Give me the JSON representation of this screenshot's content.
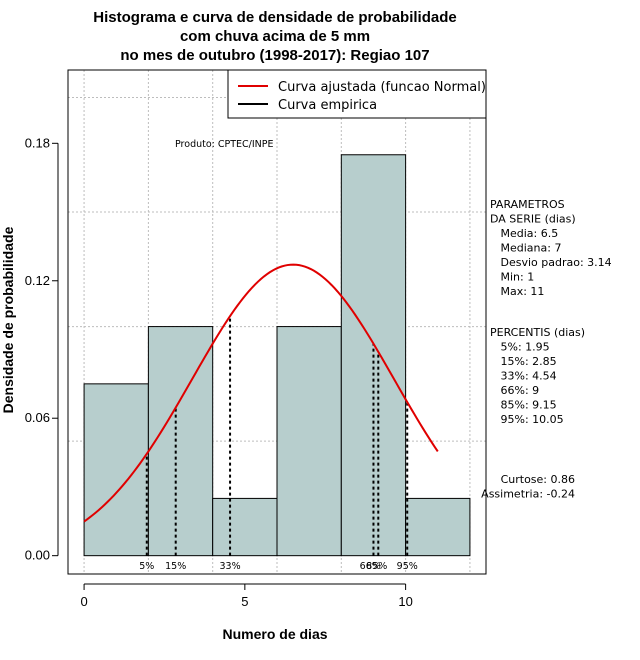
{
  "chart_data": {
    "type": "bar",
    "title_lines": [
      "Histograma e curva de densidade de probabilidade",
      "com chuva acima de 5 mm",
      "no mes de outubro (1998-2017): Regiao 107"
    ],
    "xlabel": "Numero de dias",
    "ylabel": "Densidade de probabilidade",
    "xlim": [
      -0.5,
      12.5
    ],
    "ylim": [
      -0.008,
      0.212
    ],
    "x_ticks": [
      0,
      5,
      10
    ],
    "y_ticks": [
      0.0,
      0.06,
      0.12,
      0.18
    ],
    "y_tick_labels": [
      "0.00",
      "0.06",
      "0.12",
      "0.18"
    ],
    "grid_x": [
      0,
      2,
      4,
      6,
      8,
      10,
      12
    ],
    "grid_y": [
      0.05,
      0.1,
      0.15,
      0.2
    ],
    "bins": [
      {
        "start": 0,
        "end": 2,
        "density": 0.075
      },
      {
        "start": 2,
        "end": 4,
        "density": 0.1
      },
      {
        "start": 4,
        "end": 6,
        "density": 0.025
      },
      {
        "start": 6,
        "end": 8,
        "density": 0.1
      },
      {
        "start": 8,
        "end": 10,
        "density": 0.175
      },
      {
        "start": 10,
        "end": 12,
        "density": 0.025
      }
    ],
    "bar_color": "#b7cecd",
    "normal_curve": {
      "mean": 6.5,
      "sd": 3.14,
      "x_from": 0,
      "x_to": 11,
      "color": "#e00000"
    },
    "percentile_lines": [
      {
        "label": "5%",
        "x": 1.95,
        "label_x": 1.95
      },
      {
        "label": "15%",
        "x": 2.85,
        "label_x": 2.85
      },
      {
        "label": "33%",
        "x": 4.54,
        "label_x": 4.54
      },
      {
        "label": "66%",
        "x": 9.0,
        "label_x": 8.9
      },
      {
        "label": "85%",
        "x": 9.15,
        "label_x": 9.1
      },
      {
        "label": "95%",
        "x": 10.05,
        "label_x": 10.05
      }
    ],
    "legend": [
      {
        "label": "Curva ajustada (funcao Normal)",
        "color": "#e00000"
      },
      {
        "label": "Curva empirica",
        "color": "#000000"
      }
    ],
    "legend_position": "top-right",
    "annotation": "Produto: CPTEC/INPE",
    "parametros": [
      "PARAMETROS",
      "DA SERIE (dias)",
      "   Media: 6.5",
      "   Mediana: 7",
      "   Desvio padrao: 3.14",
      "   Min: 1",
      "   Max: 11"
    ],
    "percentis": [
      "PERCENTIS (dias)",
      "   5%: 1.95",
      "   15%: 2.85",
      "   33%: 4.54",
      "   66%: 9",
      "   85%: 9.15",
      "   95%: 10.05"
    ],
    "shape_stats": [
      "Curtose: 0.86",
      "Assimetria: -0.24"
    ]
  }
}
